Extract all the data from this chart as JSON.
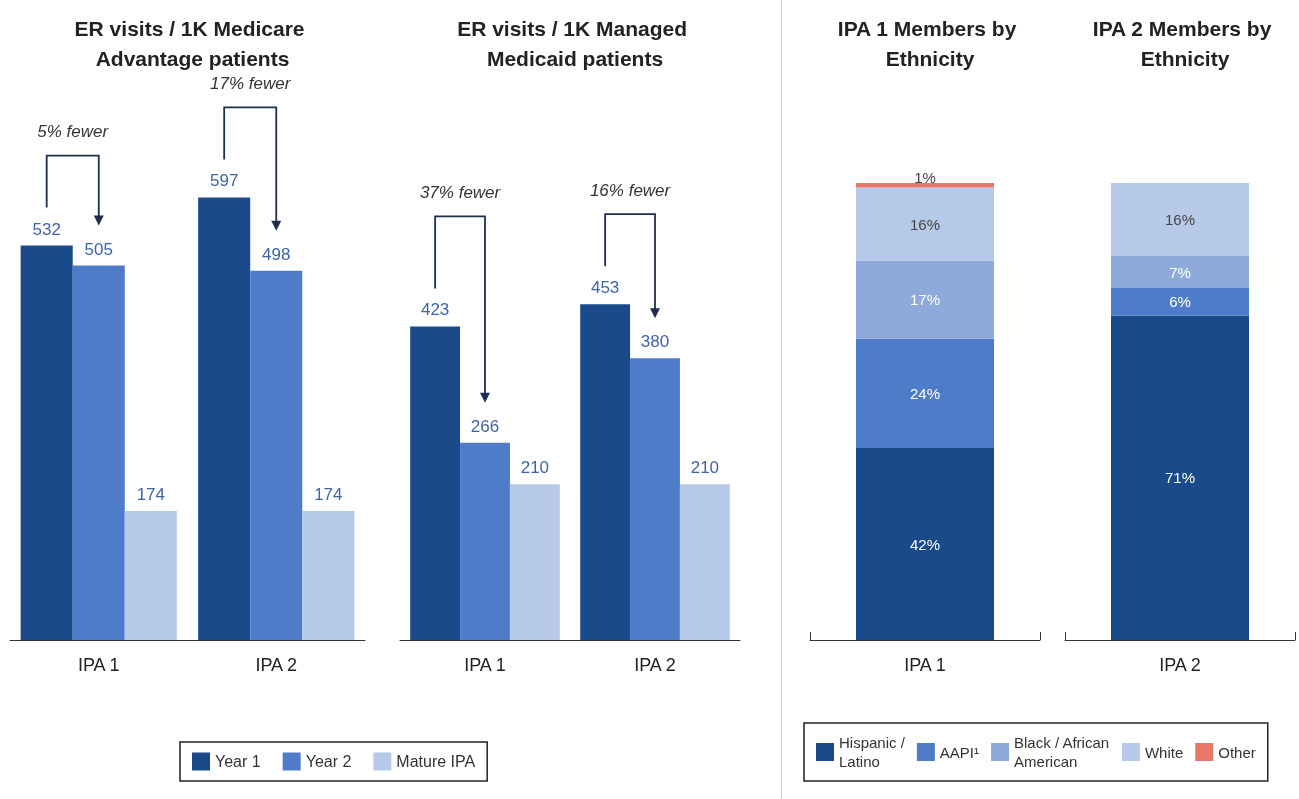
{
  "chart_data": [
    {
      "type": "bar",
      "title": "ER visits / 1K Medicare Advantage patients",
      "categories": [
        "IPA 1",
        "IPA 2"
      ],
      "data_labels": true,
      "legend": "bottom",
      "series": [
        {
          "name": "Year 1",
          "color": "#1a4a8a",
          "values": [
            532,
            597
          ]
        },
        {
          "name": "Year 2",
          "color": "#4f7cc8",
          "values": [
            505,
            498
          ]
        },
        {
          "name": "Mature IPA",
          "color": "#b7c9e8",
          "values": [
            174,
            174
          ]
        }
      ],
      "annotations": [
        "5% fewer",
        "17% fewer"
      ]
    },
    {
      "type": "bar",
      "title": "ER visits / 1K Managed Medicaid patients",
      "categories": [
        "IPA 1",
        "IPA 2"
      ],
      "data_labels": true,
      "series": [
        {
          "color": "#1a4a8a",
          "values": [
            423,
            453
          ]
        },
        {
          "color": "#4f7cc8",
          "values": [
            266,
            380
          ]
        },
        {
          "color": "#b7c9e8",
          "values": [
            210,
            210
          ]
        }
      ],
      "annotations": [
        "37% fewer",
        "16% fewer"
      ]
    },
    {
      "type": "bar",
      "stacked": true,
      "title": "IPA 1 Members by Ethnicity",
      "categories": [
        "IPA 1"
      ],
      "legend": "bottom",
      "series": [
        {
          "name": "Hispanic / Latino",
          "color": "#1a4a8a",
          "values": [
            42
          ],
          "value_labels": [
            "42%"
          ]
        },
        {
          "name": "AAPI¹",
          "color": "#4f7cc8",
          "values": [
            24
          ],
          "value_labels": [
            "24%"
          ]
        },
        {
          "name": "Black / African American",
          "color": "#8eaadb",
          "values": [
            17
          ],
          "value_labels": [
            "17%"
          ]
        },
        {
          "name": "White",
          "color": "#b7c9e8",
          "values": [
            16
          ],
          "value_labels": [
            "16%"
          ]
        },
        {
          "name": "Other",
          "color": "#e8776a",
          "values": [
            1
          ],
          "value_labels": [
            "1%"
          ]
        }
      ]
    },
    {
      "type": "bar",
      "stacked": true,
      "title": "IPA 2 Members by Ethnicity",
      "categories": [
        "IPA 2"
      ],
      "series": [
        {
          "color": "#1a4a8a",
          "values": [
            71
          ],
          "value_labels": [
            "71%"
          ]
        },
        {
          "color": "#4f7cc8",
          "values": [
            6
          ],
          "value_labels": [
            "6%"
          ]
        },
        {
          "color": "#8eaadb",
          "values": [
            7
          ],
          "value_labels": [
            "7%"
          ]
        },
        {
          "color": "#b7c9e8",
          "values": [
            16
          ],
          "value_labels": [
            "16%"
          ]
        }
      ]
    }
  ]
}
